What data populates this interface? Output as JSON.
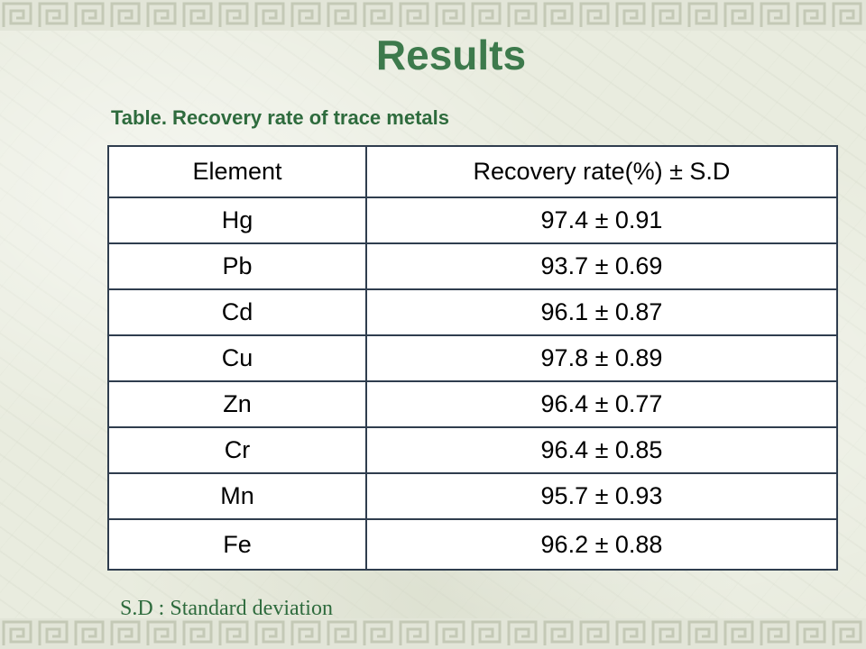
{
  "slide": {
    "title": "Results",
    "table_caption": "Table. Recovery rate of trace metals",
    "footnote": "S.D : Standard deviation"
  },
  "colors": {
    "title": "#3d7a4c",
    "caption": "#2e6b3d",
    "table_border": "#2f3d4e",
    "background": "#e9ecdf"
  },
  "table": {
    "headers": [
      "Element",
      "Recovery rate(%) ± S.D"
    ],
    "rows": [
      [
        "Hg",
        "97.4 ± 0.91"
      ],
      [
        "Pb",
        "93.7 ±  0.69"
      ],
      [
        "Cd",
        "96.1 ±  0.87"
      ],
      [
        "Cu",
        "97.8 ±  0.89"
      ],
      [
        "Zn",
        "96.4 ±  0.77"
      ],
      [
        "Cr",
        "96.4 ±  0.85"
      ],
      [
        "Mn",
        "95.7 ±  0.93"
      ],
      [
        "Fe",
        "96.2 ±  0.88"
      ]
    ]
  }
}
